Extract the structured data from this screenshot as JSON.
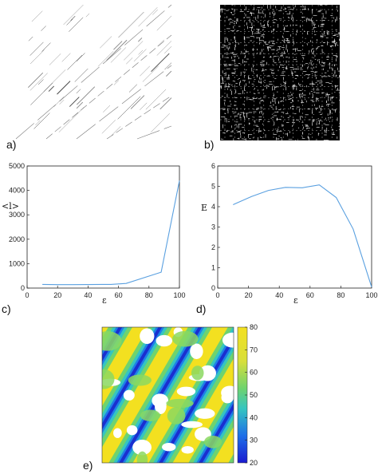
{
  "panel_labels": [
    "a)",
    "b)",
    "c)",
    "d)",
    "e)"
  ],
  "panel_a": {
    "description": "sparse recurrence plot"
  },
  "panel_b": {
    "description": "dense recurrence plot"
  },
  "chart_data": [
    {
      "type": "line",
      "panel": "c)",
      "xlabel": "ε",
      "ylabel": "<l>",
      "xlim": [
        0,
        100
      ],
      "ylim": [
        0,
        5000
      ],
      "xticks": [
        0,
        20,
        40,
        60,
        80,
        100
      ],
      "yticks": [
        0,
        1000,
        2000,
        3000,
        4000,
        5000
      ],
      "series": [
        {
          "x": [
            10,
            20,
            30,
            40,
            55,
            65,
            88,
            100
          ],
          "y": [
            150,
            140,
            140,
            145,
            150,
            190,
            650,
            4400
          ]
        }
      ],
      "color": "#5aa0e0"
    },
    {
      "type": "line",
      "panel": "d)",
      "xlabel": "ε",
      "ylabel": "E",
      "xlim": [
        0,
        100
      ],
      "ylim": [
        0,
        6
      ],
      "xticks": [
        0,
        20,
        40,
        60,
        80,
        100
      ],
      "yticks": [
        0,
        1,
        2,
        3,
        4,
        5,
        6
      ],
      "series": [
        {
          "x": [
            10,
            22,
            33,
            44,
            55,
            66,
            77,
            88,
            100
          ],
          "y": [
            4.1,
            4.5,
            4.8,
            4.95,
            4.93,
            5.07,
            4.45,
            2.9,
            0.05
          ]
        }
      ],
      "color": "#5aa0e0"
    },
    {
      "type": "heatmap",
      "panel": "e)",
      "colorbar": {
        "min": 20,
        "max": 80,
        "ticks": [
          20,
          30,
          40,
          50,
          60,
          70,
          80
        ]
      },
      "colors": [
        "#1a2fd0",
        "#1e7fe8",
        "#35c5c0",
        "#6fd36e",
        "#d8df3a",
        "#f3e020"
      ]
    }
  ]
}
